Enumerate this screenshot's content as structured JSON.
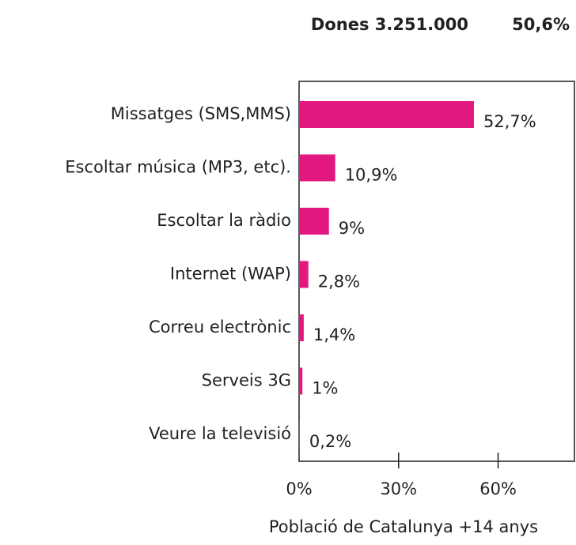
{
  "chart_data": {
    "type": "barh",
    "title": "Dones 3.251.000",
    "share": "50,6%",
    "categories": [
      "Missatges (SMS,MMS)",
      "Escoltar música (MP3, etc).",
      "Escoltar la ràdio",
      "Internet (WAP)",
      "Correu electrònic",
      "Serveis 3G",
      "Veure la televisió"
    ],
    "values": [
      52.7,
      10.9,
      9,
      2.8,
      1.4,
      1,
      0.2
    ],
    "value_labels": [
      "52,7%",
      "10,9%",
      "9%",
      "2,8%",
      "1,4%",
      "1%",
      "0,2%"
    ],
    "color": "#e2177f",
    "xlim": [
      0,
      83
    ],
    "xticks": [
      {
        "value": 0,
        "label": "0%"
      },
      {
        "value": 30,
        "label": "30%"
      },
      {
        "value": 60,
        "label": "60%"
      }
    ],
    "xlabel": "Població de Catalunya +14 anys"
  }
}
